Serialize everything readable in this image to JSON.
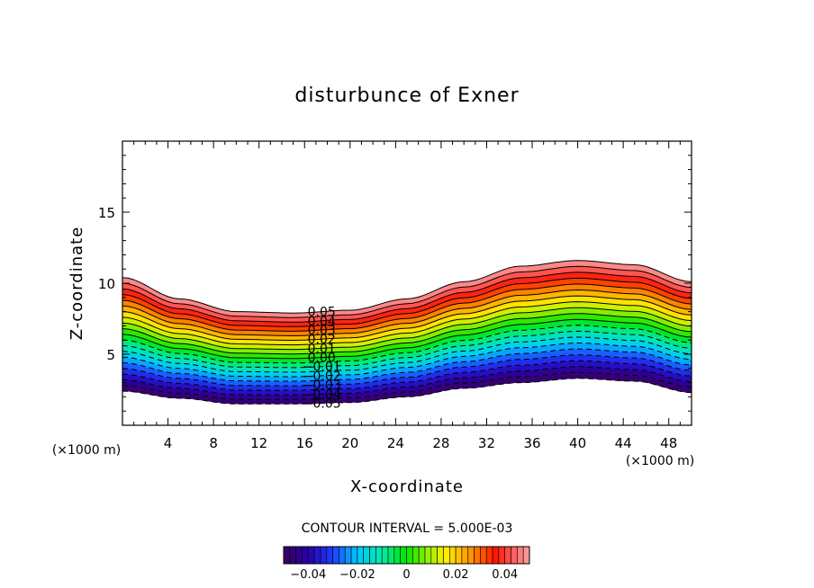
{
  "chart_data": {
    "type": "contour",
    "title": "disturbunce of Exner",
    "xlabel": "X-coordinate",
    "ylabel": "Z-coordinate",
    "x_unit_label": "(×1000 m)",
    "z_unit_label": "(×1000 m)",
    "xlim": [
      0,
      50
    ],
    "ylim": [
      0,
      20
    ],
    "x_ticks": [
      "4",
      "8",
      "12",
      "16",
      "20",
      "24",
      "28",
      "32",
      "36",
      "40",
      "44",
      "48"
    ],
    "y_ticks": [
      "5",
      "10",
      "15"
    ],
    "contour_interval_text": "CONTOUR INTERVAL = 5.000E-03",
    "levels_min": -0.05,
    "levels_max": 0.05,
    "contour_interval": 0.005,
    "negative_contours_dashed": true,
    "contour_labels": [
      "0.05",
      "0.04",
      "0.03",
      "0.02",
      "0.01",
      "0.00",
      "-0.01",
      "-0.02",
      "-0.03",
      "-0.04",
      "-0.05"
    ],
    "contour_label_x": 17.5,
    "terrain_profile": {
      "x": [
        0,
        5,
        10,
        15,
        20,
        25,
        30,
        35,
        40,
        45,
        50
      ],
      "top": [
        10.4,
        8.9,
        8.0,
        7.9,
        8.1,
        8.9,
        10.1,
        11.2,
        11.6,
        11.3,
        10.1
      ],
      "bottom": [
        2.4,
        1.9,
        1.5,
        1.5,
        1.6,
        2.0,
        2.6,
        3.0,
        3.3,
        3.1,
        2.3
      ]
    },
    "colorbar": {
      "min": -0.05,
      "max": 0.05,
      "tick_labels": [
        "-0.04",
        "-0.02",
        "0",
        "0.02",
        "0.04"
      ],
      "tick_values": [
        -0.04,
        -0.02,
        0,
        0.02,
        0.04
      ],
      "colormap": "rainbow (purple-blue-cyan-green-yellow-orange-red-pink)"
    }
  }
}
